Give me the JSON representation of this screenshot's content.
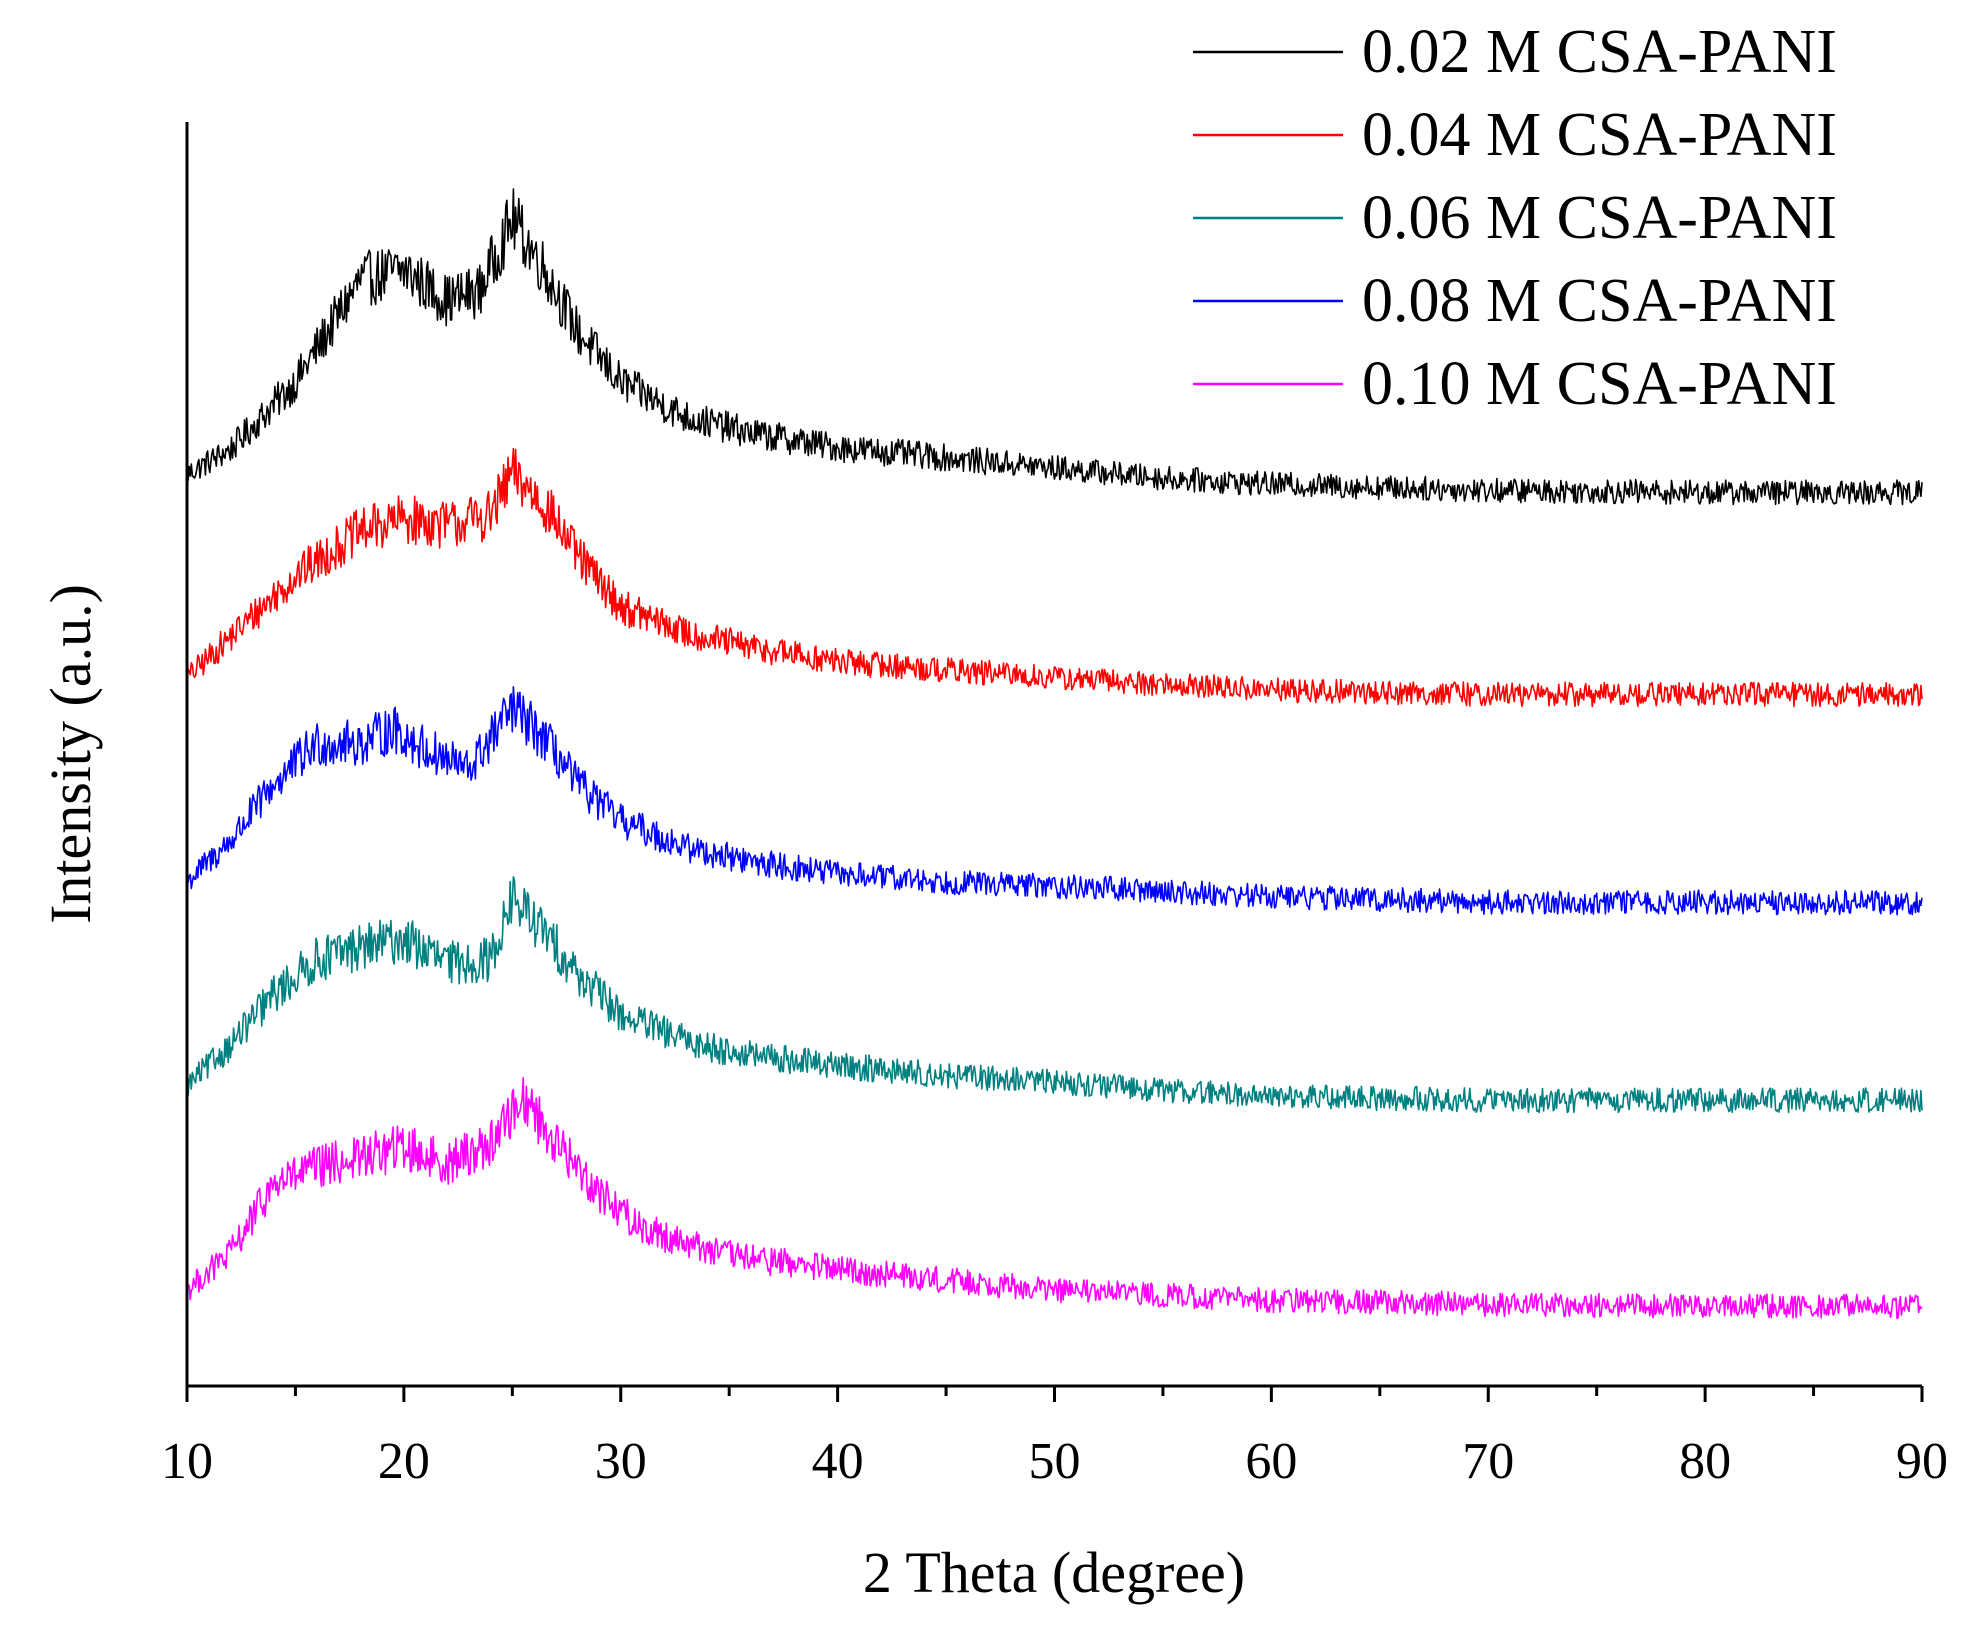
{
  "chart_data": {
    "type": "line",
    "title": "",
    "xlabel": "2 Theta (degree)",
    "ylabel": "Intensity (a.u.)",
    "xlim": [
      10,
      90
    ],
    "x_ticks": [
      10,
      20,
      30,
      40,
      50,
      60,
      70,
      80,
      90
    ],
    "x_tick_labels": [
      "10",
      "20",
      "30",
      "40",
      "50",
      "60",
      "70",
      "80",
      "90"
    ],
    "y_ticks_shown": false,
    "grid": false,
    "legend_position": "top-right",
    "series": [
      {
        "name": "0.02 M CSA-PANI",
        "color": "#000000",
        "offset": 4.0,
        "profile": [
          [
            10,
            0.0
          ],
          [
            12,
            0.12
          ],
          [
            15,
            0.45
          ],
          [
            18,
            0.95
          ],
          [
            20,
            1.0
          ],
          [
            22,
            0.85
          ],
          [
            23.5,
            0.9
          ],
          [
            25,
            1.25
          ],
          [
            26.5,
            1.0
          ],
          [
            28,
            0.7
          ],
          [
            30,
            0.45
          ],
          [
            33,
            0.28
          ],
          [
            36,
            0.2
          ],
          [
            40,
            0.13
          ],
          [
            45,
            0.08
          ],
          [
            50,
            0.03
          ],
          [
            55,
            -0.02
          ],
          [
            60,
            -0.05
          ],
          [
            70,
            -0.08
          ],
          [
            80,
            -0.09
          ],
          [
            90,
            -0.09
          ]
        ],
        "noise": 0.1
      },
      {
        "name": "0.04 M CSA-PANI",
        "color": "#ff0000",
        "offset": 3.0,
        "profile": [
          [
            10,
            0.0
          ],
          [
            12,
            0.2
          ],
          [
            15,
            0.5
          ],
          [
            18,
            0.72
          ],
          [
            20,
            0.78
          ],
          [
            22,
            0.75
          ],
          [
            24,
            0.8
          ],
          [
            25,
            1.0
          ],
          [
            26.5,
            0.85
          ],
          [
            28,
            0.6
          ],
          [
            30,
            0.35
          ],
          [
            33,
            0.22
          ],
          [
            36,
            0.15
          ],
          [
            40,
            0.08
          ],
          [
            45,
            0.04
          ],
          [
            50,
            0.0
          ],
          [
            60,
            -0.06
          ],
          [
            70,
            -0.08
          ],
          [
            80,
            -0.08
          ],
          [
            90,
            -0.08
          ]
        ],
        "noise": 0.1
      },
      {
        "name": "0.08 M CSA-PANI",
        "color": "#0000ff",
        "offset": 2.0,
        "profile": [
          [
            10,
            0.0
          ],
          [
            12,
            0.2
          ],
          [
            14,
            0.48
          ],
          [
            16,
            0.68
          ],
          [
            18,
            0.68
          ],
          [
            19.5,
            0.75
          ],
          [
            21,
            0.65
          ],
          [
            23,
            0.55
          ],
          [
            25,
            0.85
          ],
          [
            26.5,
            0.7
          ],
          [
            28,
            0.48
          ],
          [
            30,
            0.3
          ],
          [
            33,
            0.17
          ],
          [
            36,
            0.1
          ],
          [
            40,
            0.04
          ],
          [
            45,
            0.0
          ],
          [
            50,
            -0.02
          ],
          [
            60,
            -0.07
          ],
          [
            70,
            -0.1
          ],
          [
            80,
            -0.1
          ],
          [
            90,
            -0.1
          ]
        ],
        "noise": 0.1
      },
      {
        "name": "0.06 M CSA-PANI",
        "color": "#008080",
        "offset": 1.0,
        "profile": [
          [
            10,
            0.0
          ],
          [
            12,
            0.2
          ],
          [
            14,
            0.45
          ],
          [
            16,
            0.62
          ],
          [
            18,
            0.68
          ],
          [
            20,
            0.72
          ],
          [
            22,
            0.6
          ],
          [
            24,
            0.62
          ],
          [
            25,
            0.92
          ],
          [
            26.5,
            0.75
          ],
          [
            28,
            0.55
          ],
          [
            30,
            0.35
          ],
          [
            33,
            0.22
          ],
          [
            36,
            0.15
          ],
          [
            40,
            0.1
          ],
          [
            45,
            0.05
          ],
          [
            50,
            0.02
          ],
          [
            55,
            -0.02
          ],
          [
            60,
            -0.05
          ],
          [
            70,
            -0.07
          ],
          [
            80,
            -0.07
          ],
          [
            90,
            -0.07
          ]
        ],
        "noise": 0.1
      },
      {
        "name": "0.10 M CSA-PANI",
        "color": "#ff00ff",
        "offset": 0.0,
        "profile": [
          [
            10,
            0.0
          ],
          [
            12,
            0.18
          ],
          [
            14,
            0.52
          ],
          [
            16,
            0.6
          ],
          [
            18,
            0.65
          ],
          [
            20,
            0.7
          ],
          [
            22,
            0.62
          ],
          [
            24,
            0.72
          ],
          [
            25.5,
            0.95
          ],
          [
            27,
            0.72
          ],
          [
            29,
            0.48
          ],
          [
            31,
            0.3
          ],
          [
            35,
            0.17
          ],
          [
            40,
            0.1
          ],
          [
            45,
            0.05
          ],
          [
            50,
            0.0
          ],
          [
            60,
            -0.05
          ],
          [
            70,
            -0.07
          ],
          [
            80,
            -0.08
          ],
          [
            90,
            -0.08
          ]
        ],
        "noise": 0.1
      }
    ],
    "legend_order": [
      "0.02 M CSA-PANI",
      "0.04 M CSA-PANI",
      "0.06 M CSA-PANI",
      "0.08 M CSA-PANI",
      "0.10 M CSA-PANI"
    ]
  }
}
